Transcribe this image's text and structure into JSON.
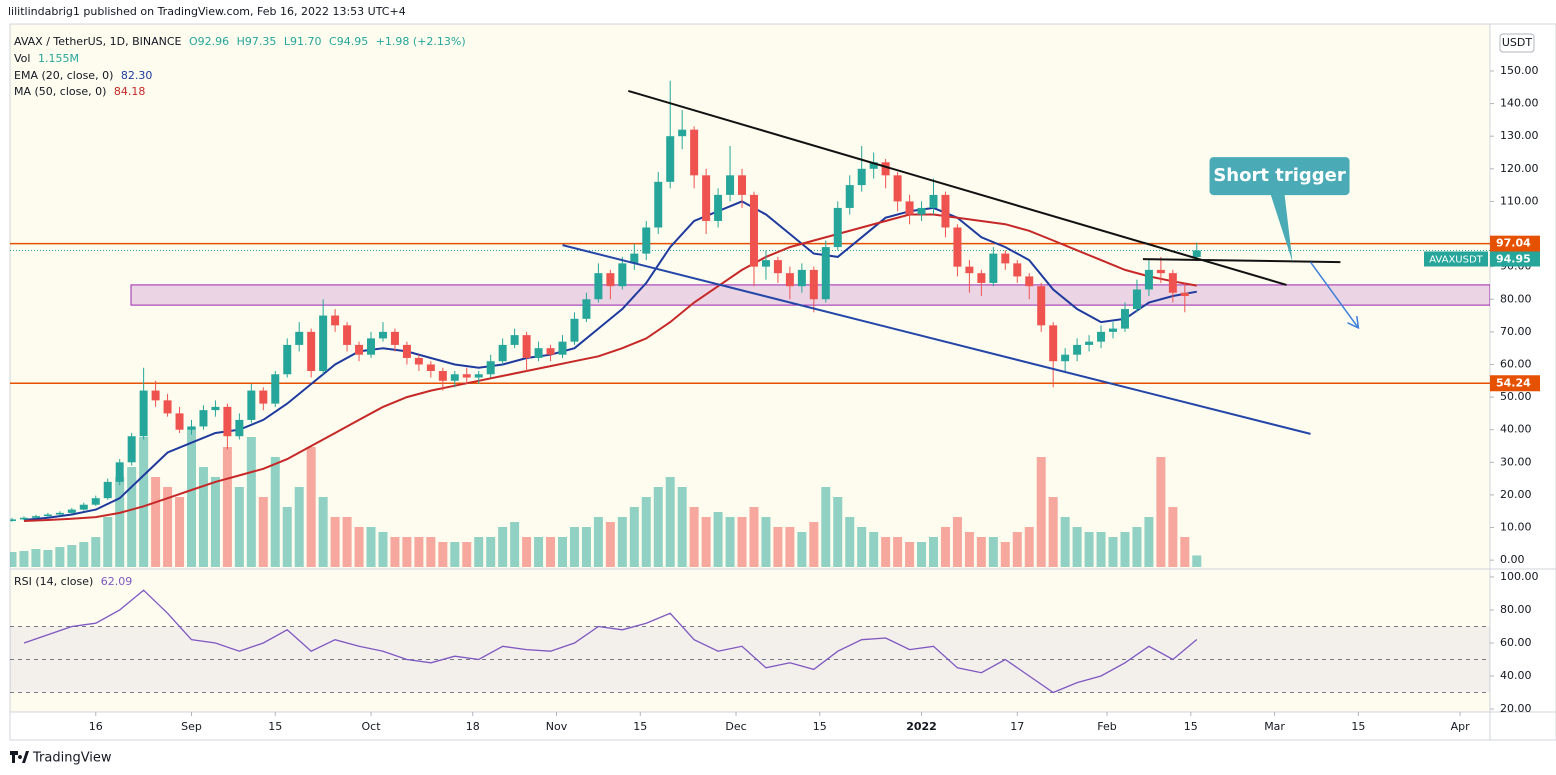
{
  "header": {
    "publish": "lilitlindabrig1 published on TradingView.com, Feb 16, 2022 13:53 UTC+4",
    "footer": "TradingView"
  },
  "chart_data": {
    "type": "candlestick",
    "currency": "USDT",
    "legend": {
      "symbol": "AVAX / TetherUS, 1D, BINANCE",
      "open": "O92.96",
      "high": "H97.35",
      "low": "L91.70",
      "close": "C94.95",
      "change": "+1.98 (+2.13%)"
    },
    "up_color": "#26a69a",
    "down_color": "#ef5350",
    "x": [
      "2021-08-02",
      "2021-08-04",
      "2021-08-06",
      "2021-08-08",
      "2021-08-10",
      "2021-08-12",
      "2021-08-14",
      "2021-08-16",
      "2021-08-18",
      "2021-08-20",
      "2021-08-22",
      "2021-08-24",
      "2021-08-26",
      "2021-08-28",
      "2021-08-30",
      "2021-09-01",
      "2021-09-03",
      "2021-09-05",
      "2021-09-07",
      "2021-09-09",
      "2021-09-11",
      "2021-09-13",
      "2021-09-15",
      "2021-09-17",
      "2021-09-19",
      "2021-09-21",
      "2021-09-23",
      "2021-09-25",
      "2021-09-27",
      "2021-09-29",
      "2021-10-01",
      "2021-10-03",
      "2021-10-05",
      "2021-10-07",
      "2021-10-09",
      "2021-10-11",
      "2021-10-13",
      "2021-10-15",
      "2021-10-17",
      "2021-10-19",
      "2021-10-21",
      "2021-10-23",
      "2021-10-25",
      "2021-10-27",
      "2021-10-29",
      "2021-10-31",
      "2021-11-02",
      "2021-11-04",
      "2021-11-06",
      "2021-11-08",
      "2021-11-10",
      "2021-11-12",
      "2021-11-14",
      "2021-11-16",
      "2021-11-18",
      "2021-11-20",
      "2021-11-22",
      "2021-11-24",
      "2021-11-26",
      "2021-11-28",
      "2021-11-30",
      "2021-12-02",
      "2021-12-04",
      "2021-12-06",
      "2021-12-08",
      "2021-12-10",
      "2021-12-12",
      "2021-12-14",
      "2021-12-16",
      "2021-12-18",
      "2021-12-20",
      "2021-12-22",
      "2021-12-24",
      "2021-12-26",
      "2021-12-28",
      "2021-12-30",
      "2022-01-01",
      "2022-01-03",
      "2022-01-05",
      "2022-01-07",
      "2022-01-09",
      "2022-01-11",
      "2022-01-13",
      "2022-01-15",
      "2022-01-17",
      "2022-01-19",
      "2022-01-21",
      "2022-01-23",
      "2022-01-25",
      "2022-01-27",
      "2022-01-29",
      "2022-01-31",
      "2022-02-02",
      "2022-02-04",
      "2022-02-06",
      "2022-02-08",
      "2022-02-10",
      "2022-02-12",
      "2022-02-14",
      "2022-02-16"
    ],
    "ohlc": [
      [
        12,
        13,
        11.8,
        12.5
      ],
      [
        12.5,
        13.4,
        12.2,
        13
      ],
      [
        13,
        13.9,
        12.8,
        13.5
      ],
      [
        13.5,
        14.5,
        13.2,
        14
      ],
      [
        14,
        15,
        13.6,
        14.5
      ],
      [
        14.5,
        16,
        14.2,
        15.5
      ],
      [
        15.5,
        17.6,
        15.2,
        17
      ],
      [
        17,
        19.8,
        16.6,
        19
      ],
      [
        19,
        25,
        18.5,
        24
      ],
      [
        24,
        31,
        23,
        30
      ],
      [
        30,
        39,
        29,
        38
      ],
      [
        38,
        59,
        37,
        52
      ],
      [
        52,
        55,
        47,
        49
      ],
      [
        49,
        51,
        44,
        45
      ],
      [
        45,
        47,
        39,
        40
      ],
      [
        40,
        43,
        38.5,
        41
      ],
      [
        41,
        47.5,
        40,
        46
      ],
      [
        46,
        49,
        44,
        47
      ],
      [
        47,
        48,
        34,
        38
      ],
      [
        38,
        45,
        37,
        43
      ],
      [
        43,
        54,
        42,
        52
      ],
      [
        52,
        53,
        46,
        48
      ],
      [
        48,
        58,
        47,
        57
      ],
      [
        57,
        68,
        56,
        66
      ],
      [
        66,
        73,
        64,
        70
      ],
      [
        70,
        71,
        56,
        58
      ],
      [
        58,
        80,
        57,
        75
      ],
      [
        75,
        77,
        70,
        72
      ],
      [
        72,
        73,
        64,
        66
      ],
      [
        66,
        67,
        61,
        63
      ],
      [
        63,
        70,
        62,
        68
      ],
      [
        68,
        73,
        67,
        70
      ],
      [
        70,
        71,
        64,
        66
      ],
      [
        66,
        67,
        60,
        62
      ],
      [
        62,
        63,
        58,
        60
      ],
      [
        60,
        61,
        56,
        58
      ],
      [
        58,
        59,
        52,
        55
      ],
      [
        55,
        58,
        53,
        57
      ],
      [
        57,
        59,
        54,
        56
      ],
      [
        56,
        58,
        54,
        57
      ],
      [
        57,
        63,
        56,
        61
      ],
      [
        61,
        68,
        60,
        66
      ],
      [
        66,
        71,
        65,
        69
      ],
      [
        69,
        70,
        58,
        62
      ],
      [
        62,
        67,
        61,
        65
      ],
      [
        65,
        66,
        61,
        63
      ],
      [
        63,
        69,
        62,
        67
      ],
      [
        67,
        76,
        66,
        74
      ],
      [
        74,
        82,
        73,
        80
      ],
      [
        80,
        91,
        79,
        88
      ],
      [
        88,
        89,
        80,
        84
      ],
      [
        84,
        93,
        83,
        91
      ],
      [
        91,
        97,
        89,
        94
      ],
      [
        94,
        104,
        92,
        102
      ],
      [
        102,
        119,
        100,
        116
      ],
      [
        116,
        147,
        114,
        130
      ],
      [
        130,
        138,
        126,
        132
      ],
      [
        132,
        133,
        114,
        118
      ],
      [
        118,
        120,
        100,
        104
      ],
      [
        104,
        114,
        102,
        112
      ],
      [
        112,
        127,
        110,
        118
      ],
      [
        118,
        120,
        108,
        112
      ],
      [
        112,
        113,
        84,
        90
      ],
      [
        90,
        95,
        86,
        92
      ],
      [
        92,
        93,
        85,
        88
      ],
      [
        88,
        90,
        80,
        84
      ],
      [
        84,
        91,
        82,
        89
      ],
      [
        89,
        90,
        76,
        80
      ],
      [
        80,
        98,
        79,
        96
      ],
      [
        96,
        110,
        95,
        108
      ],
      [
        108,
        118,
        106,
        115
      ],
      [
        115,
        127,
        113,
        120
      ],
      [
        120,
        125,
        117,
        122
      ],
      [
        122,
        123,
        114,
        118
      ],
      [
        118,
        119,
        107,
        110
      ],
      [
        110,
        112,
        103,
        106
      ],
      [
        106,
        110,
        104,
        108
      ],
      [
        108,
        117,
        106,
        112
      ],
      [
        112,
        113,
        99,
        102
      ],
      [
        102,
        103,
        87,
        90
      ],
      [
        90,
        92,
        82,
        88
      ],
      [
        88,
        89,
        81,
        85
      ],
      [
        85,
        96,
        84,
        94
      ],
      [
        94,
        95,
        89,
        91
      ],
      [
        91,
        92,
        85,
        87
      ],
      [
        87,
        88,
        80,
        84
      ],
      [
        84,
        85,
        70,
        72
      ],
      [
        72,
        73,
        53,
        61
      ],
      [
        61,
        65,
        58,
        63
      ],
      [
        63,
        68,
        61,
        66
      ],
      [
        66,
        69,
        64,
        67
      ],
      [
        67,
        72,
        65,
        70
      ],
      [
        70,
        73,
        68,
        71
      ],
      [
        71,
        79,
        70,
        77
      ],
      [
        77,
        86,
        76,
        83
      ],
      [
        83,
        92,
        81,
        89
      ],
      [
        89,
        93,
        85,
        88
      ],
      [
        88,
        89,
        79,
        82
      ],
      [
        82,
        85,
        76,
        81
      ],
      [
        92.96,
        97.35,
        91.7,
        94.95
      ]
    ],
    "volume": {
      "name": "Vol",
      "last_label": "1.155M",
      "values": [
        1.5,
        1.6,
        1.8,
        1.7,
        2,
        2.2,
        2.5,
        3,
        5,
        9,
        10,
        13,
        9,
        8,
        7,
        14,
        10,
        9,
        12,
        8,
        13,
        7,
        11,
        6,
        8,
        12,
        7,
        5,
        5,
        4,
        4,
        3.5,
        3,
        3,
        3,
        3,
        2.5,
        2.5,
        2.5,
        3,
        3,
        4,
        4.5,
        3,
        3,
        3,
        3,
        4,
        4,
        5,
        4.5,
        5,
        6,
        7,
        8,
        9,
        8,
        6,
        5,
        5.5,
        5,
        5,
        6,
        5,
        4,
        4,
        3.5,
        4.5,
        8,
        7,
        5,
        4,
        3.5,
        3,
        3,
        2.5,
        2.5,
        3,
        4,
        5,
        3.5,
        3,
        3,
        2.5,
        3.5,
        4,
        11,
        7,
        5,
        4,
        3.5,
        3.5,
        3,
        3.5,
        4,
        5,
        11,
        6,
        3,
        1.155
      ]
    },
    "xlim": [
      "2021-08-01",
      "2022-04-06"
    ],
    "xticks": [
      {
        "value": "2021-08-16",
        "label": "16"
      },
      {
        "value": "2021-09-01",
        "label": "Sep"
      },
      {
        "value": "2021-09-15",
        "label": "15"
      },
      {
        "value": "2021-10-01",
        "label": "Oct"
      },
      {
        "value": "2021-10-18",
        "label": "18"
      },
      {
        "value": "2021-11-01",
        "label": "Nov"
      },
      {
        "value": "2021-11-15",
        "label": "15"
      },
      {
        "value": "2021-12-01",
        "label": "Dec"
      },
      {
        "value": "2021-12-15",
        "label": "15"
      },
      {
        "value": "2022-01-01",
        "label": "2022"
      },
      {
        "value": "2022-01-17",
        "label": "17"
      },
      {
        "value": "2022-02-01",
        "label": "Feb"
      },
      {
        "value": "2022-02-15",
        "label": "15"
      },
      {
        "value": "2022-03-01",
        "label": "Mar"
      },
      {
        "value": "2022-03-15",
        "label": "15"
      },
      {
        "value": "2022-04-01",
        "label": "Apr"
      }
    ],
    "ylim": [
      -2.1,
      164.4
    ],
    "yticks": [
      {
        "value": 0,
        "label": "0.00"
      },
      {
        "value": 10,
        "label": "10.00"
      },
      {
        "value": 20,
        "label": "20.00"
      },
      {
        "value": 30,
        "label": "30.00"
      },
      {
        "value": 40,
        "label": "40.00"
      },
      {
        "value": 50,
        "label": "50.00"
      },
      {
        "value": 60,
        "label": "60.00"
      },
      {
        "value": 70,
        "label": "70.00"
      },
      {
        "value": 80,
        "label": "80.00"
      },
      {
        "value": 90,
        "label": "90.00"
      },
      {
        "value": 110,
        "label": "110.00"
      },
      {
        "value": 120,
        "label": "120.00"
      },
      {
        "value": 130,
        "label": "130.00"
      },
      {
        "value": 140,
        "label": "140.00"
      },
      {
        "value": 150,
        "label": "150.00"
      }
    ],
    "indicators": {
      "x": [
        "2021-08-04",
        "2021-08-08",
        "2021-08-12",
        "2021-08-16",
        "2021-08-20",
        "2021-08-24",
        "2021-08-28",
        "2021-09-01",
        "2021-09-05",
        "2021-09-09",
        "2021-09-13",
        "2021-09-17",
        "2021-09-21",
        "2021-09-25",
        "2021-09-29",
        "2021-10-03",
        "2021-10-07",
        "2021-10-11",
        "2021-10-15",
        "2021-10-19",
        "2021-10-23",
        "2021-10-27",
        "2021-10-31",
        "2021-11-04",
        "2021-11-08",
        "2021-11-12",
        "2021-11-16",
        "2021-11-20",
        "2021-11-24",
        "2021-11-28",
        "2021-12-02",
        "2021-12-06",
        "2021-12-10",
        "2021-12-14",
        "2021-12-18",
        "2021-12-22",
        "2021-12-26",
        "2021-12-30",
        "2022-01-03",
        "2022-01-07",
        "2022-01-11",
        "2022-01-15",
        "2022-01-19",
        "2022-01-23",
        "2022-01-27",
        "2022-01-31",
        "2022-02-04",
        "2022-02-08",
        "2022-02-12",
        "2022-02-16"
      ],
      "series": [
        {
          "name": "EMA (20, close, 0)",
          "last_label": "82.30",
          "color": "#1e3a9e",
          "values": [
            12.3,
            13,
            14,
            15.5,
            19,
            26,
            33,
            36,
            39,
            40,
            43,
            48,
            54,
            60,
            64,
            65,
            64,
            62,
            60,
            59,
            60,
            62,
            63,
            65,
            71,
            77,
            85,
            96,
            104,
            107,
            110,
            106,
            100,
            94,
            93,
            99,
            105,
            107,
            108,
            105,
            99,
            96,
            92,
            83,
            77,
            73,
            74,
            79,
            81,
            82.3
          ]
        },
        {
          "name": "MA (50, close, 0)",
          "last_label": "84.18",
          "color": "#c62828",
          "values": [
            12,
            12.3,
            12.7,
            13.2,
            14.5,
            16.5,
            19,
            21.5,
            24,
            26,
            28,
            31,
            35,
            39,
            43,
            47,
            50,
            52,
            53.5,
            55,
            56.5,
            58,
            59.5,
            61,
            62.5,
            65,
            68,
            73,
            79,
            84,
            89,
            93,
            96,
            98,
            100,
            102,
            104,
            106,
            106,
            105,
            104,
            103,
            101,
            98,
            95,
            92,
            89,
            87,
            85.5,
            84.18
          ]
        }
      ]
    },
    "levels": [
      {
        "value": 97.04,
        "color": "#e65100"
      },
      {
        "value": 54.24,
        "color": "#e65100"
      }
    ],
    "last_price": {
      "name": "AVAXUSDT",
      "value": 94.95,
      "color": "#26a69a"
    },
    "zone": {
      "range": [
        78.2,
        84.4
      ],
      "color": "#9c27b0"
    },
    "trendlines": [
      {
        "color": "#111111",
        "points": [
          [
            "2021-11-13",
            143.9
          ],
          [
            "2022-03-03",
            84.4
          ]
        ]
      },
      {
        "color": "#2446a8",
        "points": [
          [
            "2021-11-02",
            96.6
          ],
          [
            "2022-03-07",
            38.7
          ]
        ]
      },
      {
        "color": "#111111",
        "points": [
          [
            "2022-02-07",
            92.3
          ],
          [
            "2022-03-12",
            91.4
          ]
        ]
      }
    ],
    "arrow": {
      "color": "#3d7fd9",
      "points": [
        [
          "2022-03-07",
          91.4
        ],
        [
          "2022-03-15",
          71.2
        ]
      ]
    },
    "callout": {
      "text": "Short trigger",
      "color": "#4aabb7",
      "point": [
        "2022-03-04",
        91.4
      ]
    },
    "rsi": {
      "name": "RSI (14, close)",
      "last_label": "62.09",
      "color": "#7e57c2",
      "values": [
        60,
        65,
        70,
        72,
        80,
        92,
        78,
        62,
        60,
        55,
        60,
        68,
        55,
        62,
        58,
        55,
        50,
        48,
        52,
        50,
        58,
        56,
        55,
        60,
        70,
        68,
        72,
        78,
        62,
        55,
        58,
        45,
        48,
        44,
        55,
        62,
        63,
        56,
        58,
        45,
        42,
        50,
        40,
        30,
        36,
        40,
        48,
        58,
        50,
        62.09
      ],
      "ylim": [
        18.2,
        103.6
      ],
      "yticks": [
        {
          "value": 20,
          "label": "20.00"
        },
        {
          "value": 40,
          "label": "40.00"
        },
        {
          "value": 60,
          "label": "60.00"
        },
        {
          "value": 80,
          "label": "80.00"
        },
        {
          "value": 100,
          "label": "100.00"
        }
      ],
      "bands": [
        30,
        50,
        70
      ]
    }
  }
}
